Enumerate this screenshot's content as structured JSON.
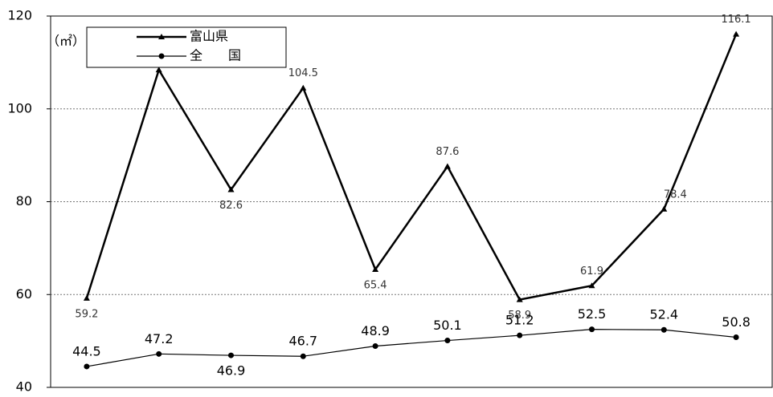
{
  "chart_data": {
    "type": "line",
    "y_unit": "（㎡）",
    "categories": [
      null,
      null,
      null,
      null,
      null,
      null,
      null,
      null,
      null,
      null
    ],
    "series": [
      {
        "name": "富山県",
        "color": "#000000",
        "marker": "triangle",
        "values": [
          59.2,
          108.4,
          82.6,
          104.5,
          65.4,
          87.6,
          58.9,
          61.9,
          78.4,
          116.1
        ],
        "value_labels": [
          "59.2",
          null,
          "82.6",
          "104.5",
          "65.4",
          "87.6",
          "58.9",
          "61.9",
          "78.4",
          "116.1"
        ]
      },
      {
        "name": "全　　国",
        "color": "#000000",
        "marker": "circle",
        "values": [
          44.5,
          47.2,
          46.9,
          46.7,
          48.9,
          50.1,
          51.2,
          52.5,
          52.4,
          50.8
        ]
      }
    ],
    "ylim": [
      40,
      120
    ],
    "yticks": [
      40,
      60,
      80,
      100,
      120
    ],
    "grid": true,
    "legend": "top-left"
  }
}
